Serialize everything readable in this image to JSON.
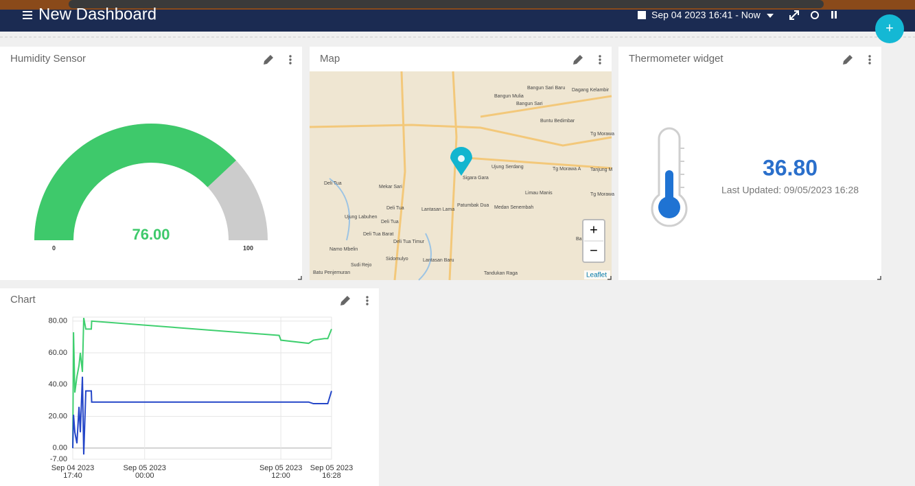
{
  "header": {
    "title": "New Dashboard",
    "time_range": "Sep 04 2023 16:41 - Now",
    "add_button": "+"
  },
  "humidity": {
    "title": "Humidity Sensor",
    "value": 76,
    "value_label": "76.00",
    "min": 0,
    "max": 100
  },
  "map": {
    "title": "Map",
    "zoom_in": "+",
    "zoom_out": "−",
    "attribution": "Leaflet",
    "labels": [
      "Bangun Sari Baru",
      "Dagang Kelambir",
      "Bangun Mulia",
      "Bangun Sari",
      "Buntu Bedimbar",
      "Tg Morawa",
      "Ujung Serdang",
      "Tg Morawa A",
      "Tanjung M",
      "Sigara Gara",
      "Deli Tua",
      "Mekar Sari",
      "Limau Manis",
      "Tg Morawa",
      "Patumbak Dua",
      "Medan Senembah",
      "Lantasan Lama",
      "Deli Tua",
      "Ujung Labuhen",
      "Deli Tua",
      "Deli Tua Barat",
      "Deli Tua Timur",
      "Namo Mbelin",
      "Sidomulyo",
      "Lantasan Baru",
      "Sudi Rejo",
      "Batu Penjemuran",
      "Tandukan Raga",
      "Bar"
    ]
  },
  "thermometer": {
    "title": "Thermometer widget",
    "value": 36.8,
    "value_label": "36.80",
    "last_updated": "Last Updated: 09/05/2023 16:28"
  },
  "chart": {
    "title": "Chart",
    "ylim": [
      -7,
      82.5
    ],
    "yticks": [
      {
        "value": 80,
        "label": "80.00"
      },
      {
        "value": 60,
        "label": "60.00"
      },
      {
        "value": 40,
        "label": "40.00"
      },
      {
        "value": 20,
        "label": "20.00"
      },
      {
        "value": 0,
        "label": "0.00"
      },
      {
        "value": -7,
        "label": "-7.00"
      }
    ],
    "xlim": [
      "2023-09-04 17:40",
      "2023-09-05 16:28"
    ],
    "xticks": [
      {
        "value": "2023-09-04 17:40",
        "label": [
          "Sep 04 2023",
          "17:40"
        ]
      },
      {
        "value": "2023-09-05 00:00",
        "label": [
          "Sep 05 2023",
          "00:00"
        ]
      },
      {
        "value": "2023-09-05 12:00",
        "label": [
          "Sep 05 2023",
          "12:00"
        ]
      },
      {
        "value": "2023-09-05 16:28",
        "label": [
          "Sep 05 2023",
          "16:28"
        ]
      }
    ],
    "x": [
      "2023-09-04 17:40",
      "2023-09-04 17:44",
      "2023-09-04 17:51",
      "2023-09-04 18:02",
      "2023-09-04 18:13",
      "2023-09-04 18:20",
      "2023-09-04 18:31",
      "2023-09-04 18:38",
      "2023-09-04 18:49",
      "2023-09-04 19:18",
      "2023-09-04 19:20",
      "2023-09-05 11:51",
      "2023-09-05 12:00",
      "2023-09-05 14:27",
      "2023-09-05 14:52",
      "2023-09-05 15:50",
      "2023-09-05 16:08",
      "2023-09-05 16:28"
    ],
    "series": [
      {
        "color": "#3ecf6e",
        "values": [
          0,
          73,
          35,
          45,
          52,
          60,
          48,
          82,
          75,
          75,
          80,
          71,
          68,
          66,
          68,
          69,
          69,
          75
        ]
      },
      {
        "color": "#2446c8",
        "values": [
          0,
          21,
          10,
          3,
          26,
          10,
          45,
          -4,
          36,
          36,
          29,
          29,
          29,
          29,
          28,
          28,
          28,
          36
        ]
      }
    ]
  }
}
